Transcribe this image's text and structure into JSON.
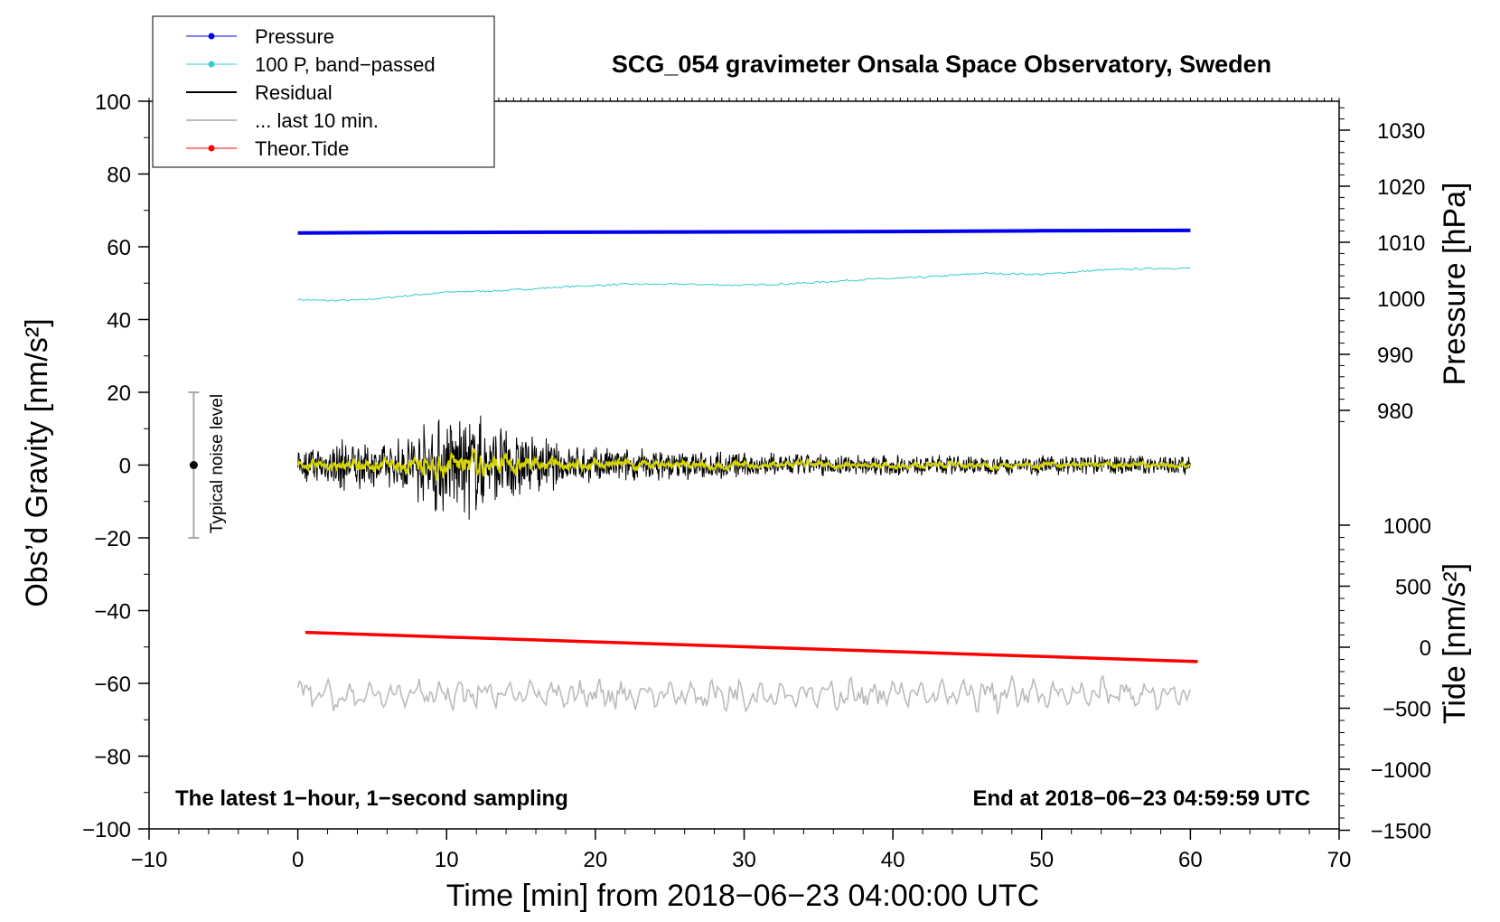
{
  "chart_data": {
    "type": "line",
    "title": "SCG_054 gravimeter Onsala Space Observatory, Sweden",
    "xlabel": "Time [min] from 2018−06−23 04:00:00 UTC",
    "ylabel_left": "Obs’d Gravity [nm/s²]",
    "ylabel_right_top": "Pressure [hPa]",
    "ylabel_right_bottom": "Tide [nm/s²]",
    "xlim": [
      -10,
      70
    ],
    "ylim_left": [
      -100,
      100
    ],
    "x_ticks": [
      -10,
      0,
      10,
      20,
      30,
      40,
      50,
      60,
      70
    ],
    "x_tick_labels": [
      "−10",
      "0",
      "10",
      "20",
      "30",
      "40",
      "50",
      "60",
      "70"
    ],
    "y_ticks_left": [
      -100,
      -80,
      -60,
      -40,
      -20,
      0,
      20,
      40,
      60,
      80,
      100
    ],
    "y_tick_labels_left": [
      "−100",
      "−80",
      "−60",
      "−40",
      "−20",
      "0",
      "20",
      "40",
      "60",
      "80",
      "100"
    ],
    "pressure_ticks": [
      980,
      990,
      1000,
      1010,
      1020,
      1030
    ],
    "pressure_tick_labels": [
      "980",
      "990",
      "1000",
      "1010",
      "1020",
      "1030"
    ],
    "tide_ticks": [
      -1500,
      -1000,
      -500,
      0,
      500,
      1000
    ],
    "tide_tick_labels": [
      "−1500",
      "−1000",
      "−500",
      "0",
      "500",
      "1000"
    ],
    "legend": [
      "Pressure",
      "100 P, band−passed",
      "Residual",
      "... last 10 min.",
      "Theor.Tide"
    ],
    "legend_position": "top-left",
    "annotation_left": "The latest 1−hour, 1−second sampling",
    "annotation_right": "End at 2018−06−23 04:59:59 UTC",
    "noise_label": "Typical noise level",
    "noise_bar": {
      "x": -7,
      "center": 0,
      "half_range": 20
    },
    "colors": {
      "pressure": "#0000ee",
      "bandpassed": "#33cccc",
      "residual": "#000000",
      "smoothed": "#d4d400",
      "last10": "#bbbbbb",
      "tide": "#ff0000"
    },
    "series": [
      {
        "name": "Pressure",
        "unit": "gravity axis",
        "x": [
          0,
          6,
          17,
          30,
          40,
          50,
          60
        ],
        "values": [
          63.8,
          63.9,
          64.0,
          64.1,
          64.2,
          64.4,
          64.5
        ]
      },
      {
        "name": "100 P, band−passed",
        "x": [
          0,
          2,
          4,
          6,
          8,
          10,
          14,
          18,
          22,
          26,
          30,
          34,
          38,
          42,
          46,
          50,
          54,
          58,
          60
        ],
        "values": [
          45.5,
          45.2,
          45.3,
          46.0,
          46.8,
          47.5,
          48.0,
          49.0,
          49.7,
          49.7,
          49.4,
          50.0,
          51.0,
          51.6,
          52.7,
          52.4,
          53.6,
          54.1,
          54.1
        ]
      },
      {
        "name": "Residual",
        "x_range": [
          0,
          60
        ],
        "envelope_x": [
          0,
          3,
          6,
          8,
          10,
          12,
          14,
          16,
          18,
          22,
          30,
          40,
          50,
          60
        ],
        "envelope_amplitude": [
          4,
          8,
          6,
          12,
          15,
          16,
          12,
          9,
          6,
          5,
          4,
          3,
          3,
          3
        ]
      },
      {
        "name": "... last 10 min.",
        "x_range": [
          0,
          60
        ],
        "mean": -63,
        "amplitude": 5
      },
      {
        "name": "Theor.Tide",
        "x": [
          0.5,
          60.5
        ],
        "values": [
          -46,
          -54
        ]
      }
    ]
  }
}
